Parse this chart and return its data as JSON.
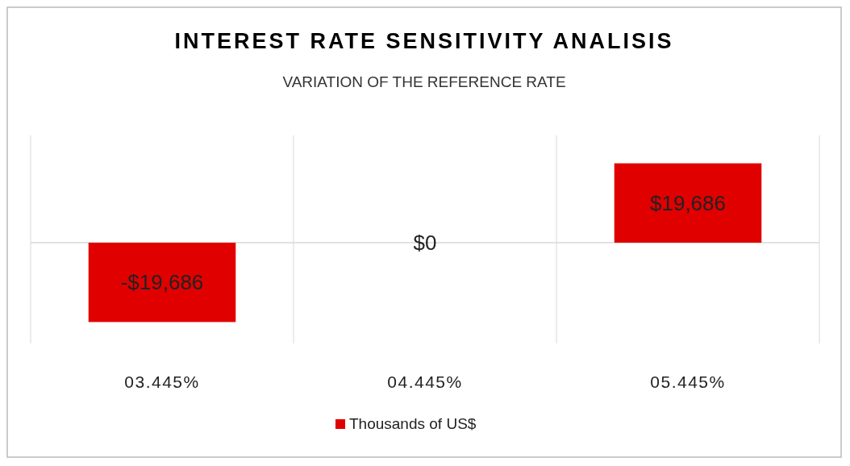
{
  "chart_data": {
    "type": "bar",
    "title": "INTEREST RATE SENSITIVITY ANALISIS",
    "subtitle": "VARIATION OF THE REFERENCE RATE",
    "categories": [
      "03.445%",
      "04.445%",
      "05.445%"
    ],
    "series": [
      {
        "name": "Thousands of US$",
        "color": "#e00000",
        "values": [
          -19686,
          0,
          19686
        ],
        "value_labels": [
          "-$19,686",
          "$0",
          "$19,686"
        ]
      }
    ],
    "grid": "x",
    "legend": "bottom"
  }
}
